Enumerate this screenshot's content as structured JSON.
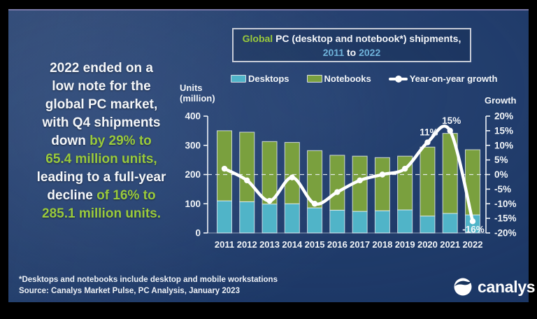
{
  "colors": {
    "background": "#183361",
    "desktops": "#50b4c8",
    "notebooks": "#7aa03e",
    "growth_line": "#ffffff",
    "accent_green_text": "#9aca3c",
    "accent_blue_text": "#6fb3da",
    "dark_point_label": "#0f2448",
    "white_text": "#f5f7fa"
  },
  "title_box": {
    "lines": [
      [
        {
          "t": "Global ",
          "c": "g"
        },
        {
          "t": "PC (desktop and notebook*) shipments,",
          "c": "w"
        }
      ],
      [
        {
          "t": "2011",
          "c": "b"
        },
        {
          "t": " to ",
          "c": "w"
        },
        {
          "t": "2022",
          "c": "b"
        }
      ]
    ]
  },
  "callout": {
    "lines": [
      [
        {
          "t": "2022 ended on a",
          "c": "w"
        }
      ],
      [
        {
          "t": "low note for the",
          "c": "w"
        }
      ],
      [
        {
          "t": "global PC market,",
          "c": "w"
        }
      ],
      [
        {
          "t": "with Q4 shipments",
          "c": "w"
        }
      ],
      [
        {
          "t": "down ",
          "c": "w"
        },
        {
          "t": "by 29% to",
          "c": "g"
        }
      ],
      [
        {
          "t": "65.4 million units,",
          "c": "g"
        }
      ],
      [
        {
          "t": "leading to a full-year",
          "c": "w"
        }
      ],
      [
        {
          "t": "decline ",
          "c": "w"
        },
        {
          "t": "of 16% to",
          "c": "g"
        }
      ],
      [
        {
          "t": "285.1 million units.",
          "c": "g"
        }
      ]
    ]
  },
  "legend": {
    "items": [
      {
        "label": "Desktops",
        "marker": "desktop-swatch"
      },
      {
        "label": "Notebooks",
        "marker": "notebook-swatch"
      },
      {
        "label": "Year-on-year growth",
        "marker": "line-marker"
      }
    ]
  },
  "chart_data": {
    "type": "bar",
    "subtype": "stacked-bars-with-growth-line",
    "title": "Global PC (desktop and notebook*) shipments, 2011 to 2022",
    "categories": [
      "2011",
      "2012",
      "2013",
      "2014",
      "2015",
      "2016",
      "2017",
      "2018",
      "2019",
      "2020",
      "2021",
      "2022"
    ],
    "series": [
      {
        "name": "Desktops",
        "type": "bar",
        "color": "#50b4c8",
        "values": [
          110,
          107,
          99,
          100,
          86,
          78,
          74,
          76,
          79,
          58,
          67,
          62
        ]
      },
      {
        "name": "Notebooks",
        "type": "bar",
        "color": "#7aa03e",
        "values": [
          240,
          238,
          214,
          210,
          196,
          188,
          189,
          182,
          184,
          236,
          274,
          223
        ]
      },
      {
        "name": "Year-on-year growth",
        "type": "line",
        "axis": "right",
        "color": "#ffffff",
        "unit": "%",
        "values": [
          2,
          -2,
          -9,
          -1,
          -10,
          -6,
          -2,
          0,
          2,
          11,
          15,
          -16
        ]
      }
    ],
    "left_axis": {
      "label": "Units (million)",
      "label_lines": [
        "Units",
        "(million)"
      ],
      "min": 0,
      "max": 400,
      "ticks": [
        400,
        300,
        200,
        100,
        0
      ]
    },
    "right_axis": {
      "label": "Growth",
      "min": -20,
      "max": 20,
      "ticks": [
        20,
        15,
        10,
        5,
        0,
        -5,
        -10,
        -15,
        -20
      ],
      "suffix": "%"
    },
    "zero_growth_gridline": "dashed",
    "legend_position": "top",
    "point_labels": [
      {
        "category": "2020",
        "text": "11%",
        "style": "dark"
      },
      {
        "category": "2021",
        "text": "15%",
        "style": "dark"
      },
      {
        "category": "2022",
        "text": "-16%",
        "style": "white"
      }
    ]
  },
  "footer": {
    "note": "*Desktops and notebooks include desktop and mobile workstations",
    "source": "Source: Canalys Market Pulse, PC Analysis, January 2023"
  },
  "logo": {
    "text": "canalys"
  }
}
